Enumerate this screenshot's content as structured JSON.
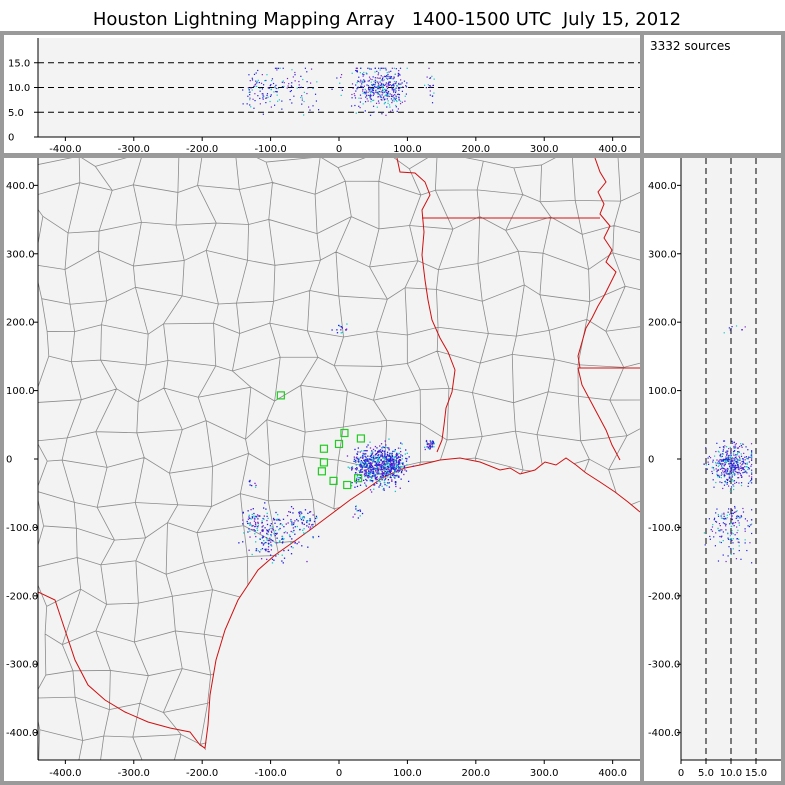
{
  "title": "Houston Lightning Mapping Array   1400-1500 UTC  July 15, 2012",
  "source_count": "3332 sources",
  "colors": {
    "frame": "#9a9a9a",
    "panel_bg": "#f3f3f3",
    "county_line": "#8c8c8c",
    "state_line": "#d01010",
    "station": "#22cc22",
    "source_low": "#1e1ed8",
    "source_mid": "#7a20c8",
    "source_high": "#10c8c8"
  },
  "chart_data": [
    {
      "name": "altitude-vs-east-west",
      "type": "scatter",
      "xlim": [
        -440,
        440
      ],
      "ylim": [
        0,
        20
      ],
      "x_ticks": [
        "-400.0",
        "-300.0",
        "-200.0",
        "-100.0",
        "0",
        "100.0",
        "200.0",
        "300.0",
        "400.0"
      ],
      "y_ticks": [
        "0",
        "5.0",
        "10.0",
        "15.0"
      ],
      "x_tick_values": [
        -400,
        -300,
        -200,
        -100,
        0,
        100,
        200,
        300,
        400
      ],
      "y_tick_values": [
        0,
        5,
        10,
        15
      ],
      "reference_lines_y": [
        5,
        10,
        15
      ],
      "grid": false
    },
    {
      "name": "plan-view-map",
      "type": "scatter",
      "xlim": [
        -440,
        440
      ],
      "ylim": [
        -440,
        440
      ],
      "x_ticks": [
        "-400.0",
        "-300.0",
        "-200.0",
        "-100.0",
        "0",
        "100.0",
        "200.0",
        "300.0",
        "400.0"
      ],
      "y_ticks": [
        "-400.0",
        "-300.0",
        "-200.0",
        "-100.0",
        "0",
        "100.0",
        "200.0",
        "300.0",
        "400.0"
      ],
      "x_tick_values": [
        -400,
        -300,
        -200,
        -100,
        0,
        100,
        200,
        300,
        400
      ],
      "y_tick_values": [
        -400,
        -300,
        -200,
        -100,
        0,
        100,
        200,
        300,
        400
      ],
      "stations": [
        {
          "x": -85,
          "y": 93
        },
        {
          "x": -22,
          "y": 15
        },
        {
          "x": 0,
          "y": 22
        },
        {
          "x": 8,
          "y": 38
        },
        {
          "x": 32,
          "y": 30
        },
        {
          "x": -22,
          "y": -5
        },
        {
          "x": -25,
          "y": -18
        },
        {
          "x": -8,
          "y": -32
        },
        {
          "x": 12,
          "y": -38
        },
        {
          "x": 28,
          "y": -28
        }
      ],
      "source_clusters": [
        {
          "x": 60,
          "y": -10,
          "n": 500,
          "spread": [
            16,
            14
          ]
        },
        {
          "x": 38,
          "y": -8,
          "n": 140,
          "spread": [
            10,
            10
          ]
        },
        {
          "x": 80,
          "y": -5,
          "n": 140,
          "spread": [
            10,
            10
          ]
        },
        {
          "x": -95,
          "y": -110,
          "n": 170,
          "spread": [
            18,
            18
          ]
        },
        {
          "x": -125,
          "y": -90,
          "n": 60,
          "spread": [
            10,
            12
          ]
        },
        {
          "x": -50,
          "y": -90,
          "n": 60,
          "spread": [
            10,
            10
          ]
        },
        {
          "x": 133,
          "y": 22,
          "n": 40,
          "spread": [
            4,
            4
          ]
        },
        {
          "x": 0,
          "y": 190,
          "n": 15,
          "spread": [
            6,
            8
          ]
        },
        {
          "x": -125,
          "y": -35,
          "n": 8,
          "spread": [
            4,
            4
          ]
        },
        {
          "x": 30,
          "y": -75,
          "n": 12,
          "spread": [
            6,
            6
          ]
        }
      ],
      "grid": false
    },
    {
      "name": "north-south-vs-altitude",
      "type": "scatter",
      "xlim": [
        0,
        20
      ],
      "ylim": [
        -440,
        440
      ],
      "x_ticks": [
        "0",
        "5.0",
        "10.0",
        "15.0"
      ],
      "x_tick_values": [
        0,
        5,
        10,
        15
      ],
      "y_ticks": [
        "-400.0",
        "-300.0",
        "-200.0",
        "-100.0",
        "0",
        "100.0",
        "200.0",
        "300.0",
        "400.0"
      ],
      "y_tick_values": [
        -400,
        -300,
        -200,
        -100,
        0,
        100,
        200,
        300,
        400
      ],
      "reference_lines_x": [
        5,
        10,
        15
      ],
      "grid": false
    }
  ]
}
